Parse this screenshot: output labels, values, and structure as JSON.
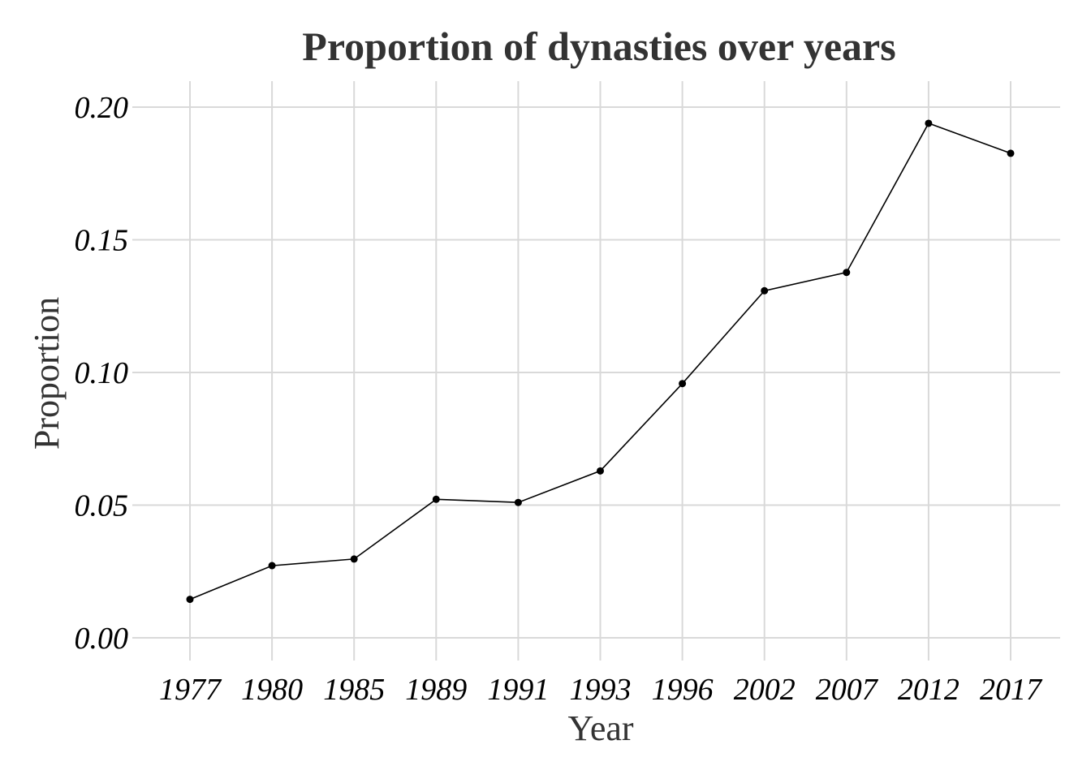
{
  "chart_data": {
    "type": "line",
    "title": "Proportion of dynasties over years",
    "xlabel": "Year",
    "ylabel": "Proportion",
    "categories": [
      "1977",
      "1980",
      "1985",
      "1989",
      "1991",
      "1993",
      "1996",
      "2002",
      "2007",
      "2012",
      "2017"
    ],
    "series": [
      {
        "values": [
          0.0145,
          0.0272,
          0.0297,
          0.0522,
          0.051,
          0.0629,
          0.0958,
          0.1308,
          0.1377,
          0.1939,
          0.1826
        ]
      }
    ],
    "ylim": [
      0,
      0.2
    ],
    "yticks": [
      "0.00",
      "0.05",
      "0.10",
      "0.15",
      "0.20"
    ],
    "grid": true,
    "legend": "none",
    "colors": {
      "line": "#000000",
      "grid": "#d9d9d9",
      "title": "#333333"
    }
  }
}
